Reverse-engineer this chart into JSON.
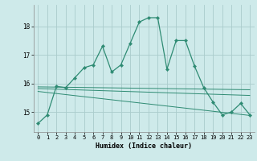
{
  "x": [
    0,
    1,
    2,
    3,
    4,
    5,
    6,
    7,
    8,
    9,
    10,
    11,
    12,
    13,
    14,
    15,
    16,
    17,
    18,
    19,
    20,
    21,
    22,
    23
  ],
  "y_main": [
    14.6,
    14.9,
    15.9,
    15.85,
    16.2,
    16.55,
    16.65,
    17.3,
    16.4,
    16.65,
    17.4,
    18.15,
    18.3,
    18.3,
    16.5,
    17.5,
    17.5,
    16.6,
    15.85,
    15.35,
    14.9,
    15.0,
    15.3,
    14.9
  ],
  "line_color": "#2e8b73",
  "marker": "D",
  "marker_size": 2.2,
  "bg_color": "#ceeaea",
  "grid_color": "#aacccc",
  "xlabel": "Humidex (Indice chaleur)",
  "yticks": [
    15,
    16,
    17,
    18
  ],
  "xticks": [
    0,
    1,
    2,
    3,
    4,
    5,
    6,
    7,
    8,
    9,
    10,
    11,
    12,
    13,
    14,
    15,
    16,
    17,
    18,
    19,
    20,
    21,
    22,
    23
  ],
  "ylim": [
    14.3,
    18.75
  ],
  "xlim": [
    -0.5,
    23.5
  ],
  "regression_lines": [
    {
      "x0": 0,
      "y0": 15.72,
      "x1": 23,
      "y1": 14.88
    },
    {
      "x0": 0,
      "y0": 15.82,
      "x1": 23,
      "y1": 15.58
    },
    {
      "x0": 0,
      "y0": 15.88,
      "x1": 23,
      "y1": 15.78
    }
  ]
}
